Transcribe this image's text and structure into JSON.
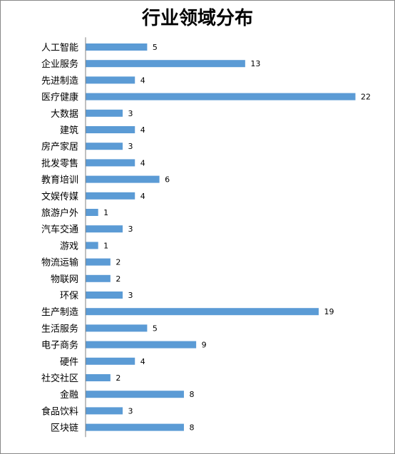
{
  "chart_data": {
    "type": "bar",
    "orientation": "horizontal",
    "title": "行业领域分布",
    "xlabel": "",
    "ylabel": "",
    "xlim": [
      0,
      22
    ],
    "grid": false,
    "legend": "none",
    "bar_color": "#5B9BD5",
    "categories": [
      "人工智能",
      "企业服务",
      "先进制造",
      "医疗健康",
      "大数据",
      "建筑",
      "房产家居",
      "批发零售",
      "教育培训",
      "文娱传媒",
      "旅游户外",
      "汽车交通",
      "游戏",
      "物流运输",
      "物联网",
      "环保",
      "生产制造",
      "生活服务",
      "电子商务",
      "硬件",
      "社交社区",
      "金融",
      "食品饮料",
      "区块链"
    ],
    "values": [
      5,
      13,
      4,
      22,
      3,
      4,
      3,
      4,
      6,
      4,
      1,
      3,
      1,
      2,
      2,
      3,
      19,
      5,
      9,
      4,
      2,
      8,
      3,
      8
    ]
  }
}
